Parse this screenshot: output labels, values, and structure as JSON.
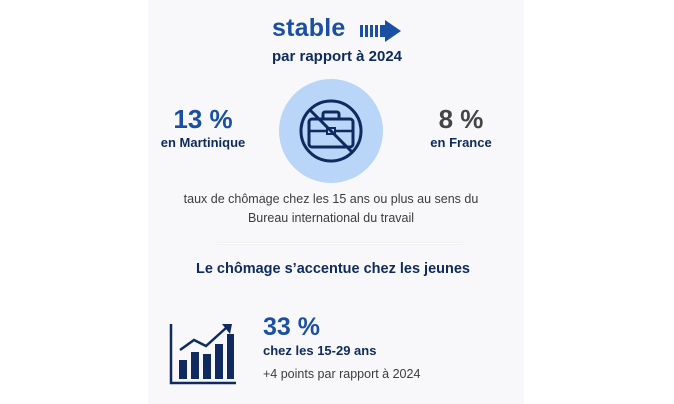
{
  "header": {
    "trend_word": "stable",
    "subtitle": "par rapport à 2024"
  },
  "martinique": {
    "value": "13 %",
    "label": "en Martinique"
  },
  "france": {
    "value": "8 %",
    "label": "en France"
  },
  "description": "taux de chômage chez les 15 ans ou plus au sens du Bureau international du travail",
  "section": {
    "title": "Le chômage s’accentue chez les jeunes"
  },
  "youth": {
    "value": "33 %",
    "label": "chez les 15-29 ans",
    "change": "+4 points par rapport à 2024"
  },
  "icons": {
    "arrow": "arrow-right-icon",
    "briefcase": "no-briefcase-icon",
    "chart": "rising-bar-chart-icon"
  },
  "colors": {
    "blue": "#1a4fa3",
    "navy": "#0e2a5e",
    "circle": "#b9d5f7",
    "grey": "#454545"
  }
}
